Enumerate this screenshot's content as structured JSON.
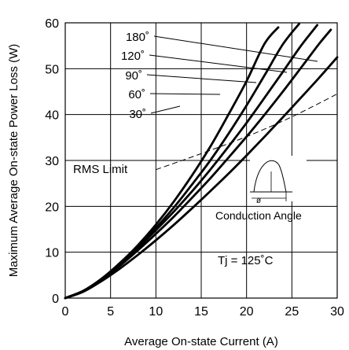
{
  "chart_data": {
    "type": "line",
    "xlabel": "Average On-state Current (A)",
    "ylabel": "Maximum Average On-state Power Loss (W)",
    "xlim": [
      0,
      30
    ],
    "ylim": [
      0,
      60
    ],
    "x_ticks": [
      "0",
      "5",
      "10",
      "15",
      "20",
      "25",
      "30"
    ],
    "y_ticks": [
      "0",
      "10",
      "20",
      "30",
      "40",
      "50",
      "60"
    ],
    "grid": true,
    "series": [
      {
        "name": "180˚",
        "points": [
          [
            0,
            0
          ],
          [
            2,
            1.6
          ],
          [
            4,
            4.2
          ],
          [
            6,
            7.6
          ],
          [
            8,
            11.5
          ],
          [
            10,
            16.0
          ],
          [
            12,
            21.1
          ],
          [
            14,
            26.8
          ],
          [
            16,
            33.0
          ],
          [
            18,
            40.0
          ],
          [
            20,
            47.3
          ],
          [
            22,
            55.5
          ],
          [
            23.5,
            59.0
          ]
        ]
      },
      {
        "name": "120˚",
        "points": [
          [
            0,
            0
          ],
          [
            2,
            1.6
          ],
          [
            4,
            4.2
          ],
          [
            6,
            7.5
          ],
          [
            8,
            11.2
          ],
          [
            10,
            15.3
          ],
          [
            12,
            19.8
          ],
          [
            14,
            24.8
          ],
          [
            16,
            30.0
          ],
          [
            18,
            35.8
          ],
          [
            20,
            42.0
          ],
          [
            22,
            48.6
          ],
          [
            24,
            55.3
          ],
          [
            25.8,
            59.8
          ]
        ]
      },
      {
        "name": "90˚",
        "points": [
          [
            0,
            0
          ],
          [
            2,
            1.6
          ],
          [
            4,
            4.1
          ],
          [
            6,
            7.3
          ],
          [
            8,
            10.9
          ],
          [
            10,
            14.8
          ],
          [
            12,
            18.9
          ],
          [
            14,
            23.3
          ],
          [
            16,
            28.0
          ],
          [
            18,
            33.0
          ],
          [
            20,
            38.2
          ],
          [
            22,
            43.7
          ],
          [
            24,
            49.3
          ],
          [
            26,
            55.0
          ],
          [
            27.8,
            59.5
          ]
        ]
      },
      {
        "name": "60˚",
        "points": [
          [
            0,
            0
          ],
          [
            2,
            1.5
          ],
          [
            4,
            4.0
          ],
          [
            6,
            7.0
          ],
          [
            8,
            10.4
          ],
          [
            10,
            14.0
          ],
          [
            12,
            17.8
          ],
          [
            14,
            21.9
          ],
          [
            16,
            26.1
          ],
          [
            18,
            30.6
          ],
          [
            20,
            35.2
          ],
          [
            22,
            40.0
          ],
          [
            24,
            45.0
          ],
          [
            26,
            50.2
          ],
          [
            28,
            55.4
          ],
          [
            29.3,
            58.5
          ]
        ]
      },
      {
        "name": "30˚",
        "points": [
          [
            0,
            0
          ],
          [
            2,
            1.4
          ],
          [
            4,
            3.7
          ],
          [
            6,
            6.4
          ],
          [
            8,
            9.4
          ],
          [
            10,
            12.6
          ],
          [
            12,
            16.0
          ],
          [
            14,
            19.6
          ],
          [
            16,
            23.3
          ],
          [
            18,
            27.1
          ],
          [
            20,
            31.1
          ],
          [
            22,
            35.2
          ],
          [
            24,
            39.4
          ],
          [
            26,
            43.7
          ],
          [
            28,
            48.0
          ],
          [
            30,
            52.5
          ]
        ]
      }
    ],
    "rms_limit": {
      "label": "RMS Limit",
      "points": [
        [
          10,
          28.0
        ],
        [
          15,
          31.5
        ],
        [
          20,
          35.2
        ],
        [
          25,
          39.5
        ],
        [
          30,
          44.5
        ]
      ]
    },
    "annotations": {
      "conduction_angle": "Conduction Angle",
      "phi": "ø",
      "tj": "Tj = 125˚C"
    }
  }
}
